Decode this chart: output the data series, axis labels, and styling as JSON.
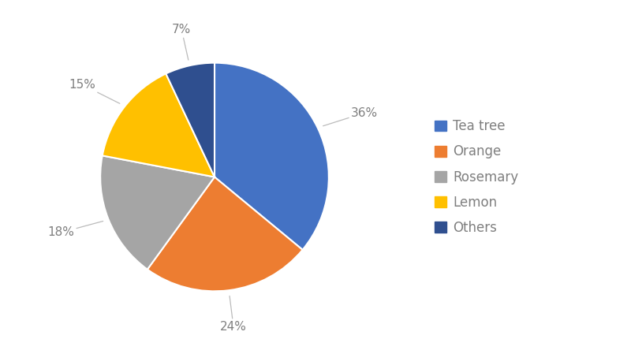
{
  "labels": [
    "Tea tree",
    "Orange",
    "Rosemary",
    "Lemon",
    "Others"
  ],
  "values": [
    36,
    24,
    18,
    15,
    7
  ],
  "slice_colors": [
    "#4472C4",
    "#ED7D31",
    "#A5A5A5",
    "#FFC000",
    "#2F4F8F"
  ],
  "pct_labels": [
    "36%",
    "24%",
    "18%",
    "15%",
    "7%"
  ],
  "background_color": "#ffffff",
  "legend_labels": [
    "Tea tree",
    "Orange",
    "Rosemary",
    "Lemon",
    "Others"
  ],
  "legend_colors": [
    "#4472C4",
    "#ED7D31",
    "#A5A5A5",
    "#FFC000",
    "#2F4F8F"
  ],
  "startangle": 90,
  "text_color": "#7f7f7f",
  "line_color": "#bbbbbb",
  "label_fontsize": 11,
  "legend_fontsize": 12
}
